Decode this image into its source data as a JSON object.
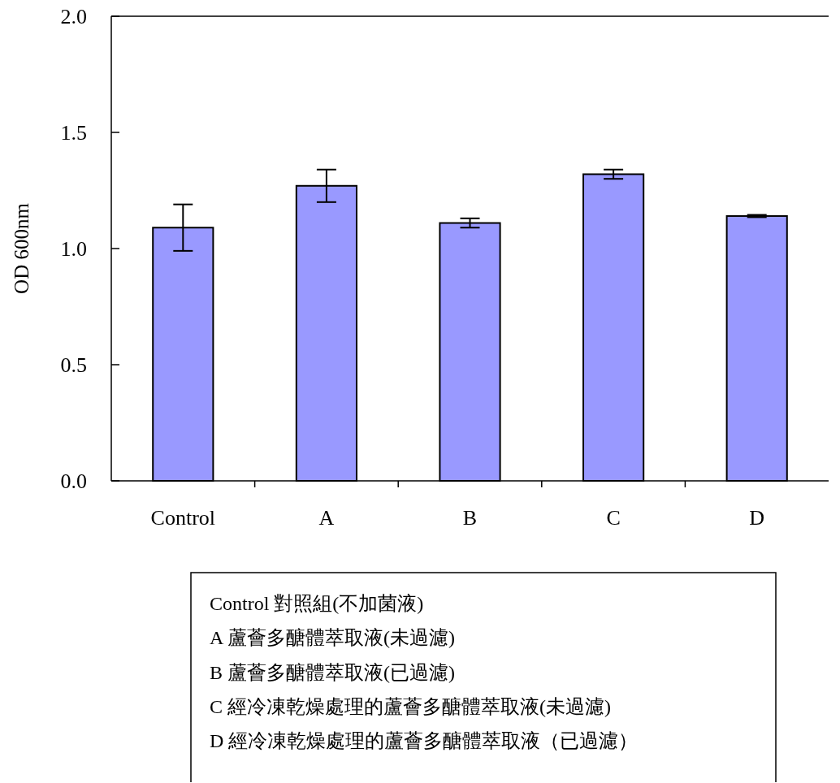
{
  "chart_data": {
    "type": "bar",
    "ylabel": "OD 600nm",
    "categories": [
      "Control",
      "A",
      "B",
      "C",
      "D"
    ],
    "values": [
      1.09,
      1.27,
      1.11,
      1.32,
      1.14
    ],
    "errors": [
      0.1,
      0.07,
      0.02,
      0.02,
      0.005
    ],
    "color": "#9999ff",
    "ylim": [
      0,
      2
    ],
    "yticks": [
      {
        "value": 0,
        "label": "0.0"
      },
      0.5,
      {
        "value": 1,
        "label": "1.0"
      },
      1.5,
      {
        "value": 2,
        "label": "2.0"
      }
    ],
    "grid": false,
    "legend": false,
    "annotations": [
      "Control 對照組(不加菌液)",
      "A 蘆薈多醣體萃取液(未過濾)",
      "B 蘆薈多醣體萃取液(已過濾)",
      "C 經冷凍乾燥處理的蘆薈多醣體萃取液(未過濾)",
      "D 經冷凍乾燥處理的蘆薈多醣體萃取液（已過濾）"
    ]
  }
}
